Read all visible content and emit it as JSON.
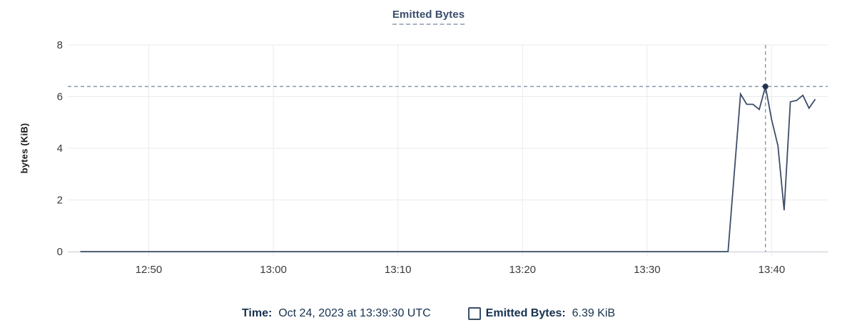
{
  "chart_data": {
    "type": "line",
    "title": "Emitted Bytes",
    "xlabel": "",
    "ylabel": "bytes (KiB)",
    "ylim": [
      0,
      8
    ],
    "y_ticks": [
      0,
      2,
      4,
      6,
      8
    ],
    "grid": true,
    "x_domain": {
      "start_time": "12:43:30",
      "end_time": "13:44:30",
      "start_min": 0,
      "end_min": 61
    },
    "x_ticks": [
      {
        "min": 6.5,
        "label": "12:50"
      },
      {
        "min": 16.5,
        "label": "13:00"
      },
      {
        "min": 26.5,
        "label": "13:10"
      },
      {
        "min": 36.5,
        "label": "13:20"
      },
      {
        "min": 46.5,
        "label": "13:30"
      },
      {
        "min": 56.5,
        "label": "13:40"
      }
    ],
    "series": [
      {
        "name": "Emitted Bytes",
        "unit": "KiB",
        "points_min_value": [
          [
            1.0,
            0
          ],
          [
            53.0,
            0
          ],
          [
            54.0,
            6.1
          ],
          [
            54.5,
            5.7
          ],
          [
            55.0,
            5.7
          ],
          [
            55.5,
            5.5
          ],
          [
            56.0,
            6.39
          ],
          [
            56.5,
            5.1
          ],
          [
            57.0,
            4.1
          ],
          [
            57.5,
            1.6
          ],
          [
            58.0,
            5.8
          ],
          [
            58.5,
            5.85
          ],
          [
            59.0,
            6.05
          ],
          [
            59.5,
            5.55
          ],
          [
            60.0,
            5.9
          ]
        ]
      }
    ],
    "hover_marker": {
      "time": "13:39:30",
      "min": 56.0,
      "value": 6.39,
      "value_label": "6.39 KiB"
    },
    "colors": {
      "line": "#3d4e68",
      "marker": "#22344e",
      "crosshair": "#8599ad",
      "grid": "#e9ebee",
      "axis_line": "#d7dadf",
      "axis_text": "#3a3a3a",
      "title": "#3b4d6b",
      "footer_text": "#16324f"
    }
  },
  "footer": {
    "time_label": "Time:",
    "time_value": "Oct 24, 2023 at 13:39:30 UTC",
    "series_label": "Emitted Bytes:",
    "series_value": "6.39 KiB"
  }
}
